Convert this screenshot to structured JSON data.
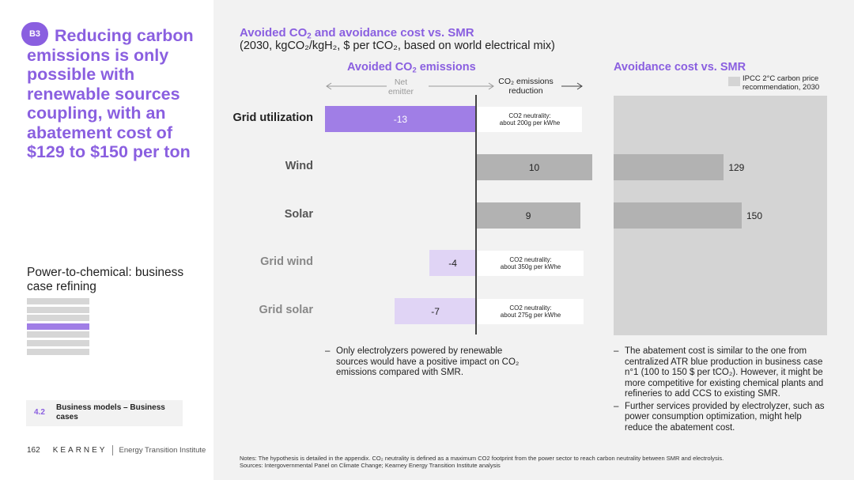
{
  "sidebar": {
    "badge": "B3",
    "headline": "Reducing carbon emissions is only possible with renewable sources coupling, with an abatement cost of $129 to $150 per ton",
    "section_title": "Power-to-chemical: business case refining",
    "chip_number": "4.2",
    "chip_text": "Business models – Business cases",
    "page_number": "162",
    "logo": "KEARNEY",
    "institute": "Energy Transition Institute"
  },
  "header": {
    "title_pre": "Avoided CO",
    "title_sub": "2",
    "title_post": " and avoidance cost vs. SMR",
    "subtitle": "(2030, kgCO₂/kgH₂, $ per tCO₂, based on world electrical mix)"
  },
  "avoided_chart": {
    "heading_pre": "Avoided CO",
    "heading_sub": "2",
    "heading_post": " emissions",
    "axis_left_label": "Net emitter",
    "axis_right_label": "CO₂ emissions reduction",
    "value_labels": [
      "-13",
      "10",
      "9",
      "-4",
      "-7"
    ],
    "notes": [
      {
        "line1": "CO2 neutrality:",
        "line2": "about 200g per kWhe"
      },
      {
        "line1": "CO2 neutrality:",
        "line2": "about 350g per kWhe"
      },
      {
        "line1": "CO2 neutrality:",
        "line2": "about 275g per kWhe"
      }
    ]
  },
  "cost_chart": {
    "heading": "Avoidance cost vs. SMR",
    "legend": "IPCC 2°C carbon price recommendation, 2030",
    "value_labels": [
      "129",
      "150"
    ]
  },
  "chart_data": [
    {
      "type": "bar",
      "title": "Avoided CO2 emissions",
      "categories": [
        "Grid utilization",
        "Wind",
        "Solar",
        "Grid wind",
        "Grid solar"
      ],
      "values": [
        -13,
        10,
        9,
        -4,
        -7
      ],
      "colors": [
        "#a07ee6",
        "#b2b2b2",
        "#b2b2b2",
        "#e0d4f5",
        "#e0d4f5"
      ]
    },
    {
      "type": "bar",
      "title": "Avoidance cost vs. SMR",
      "categories": [
        "Wind",
        "Solar"
      ],
      "values": [
        129,
        150
      ],
      "colors": [
        "#b2b2b2",
        "#b2b2b2"
      ]
    }
  ],
  "bullets_left": [
    "Only electrolyzers powered by renewable sources would have a positive impact on CO₂ emissions compared with SMR."
  ],
  "bullets_right": [
    "The abatement cost is similar to the one from centralized ATR blue production in business case n°1 (100 to 150 $ per tCO₂). However, it might be more competitive for existing chemical plants and refineries to add CCS to existing SMR.",
    "Further services provided by electrolyzer, such as power consumption optimization, might help reduce the abatement cost."
  ],
  "footnotes": {
    "notes": "Notes: The hypothesis is detailed in the appendix. CO₂ neutrality is defined as a maximum CO2 footprint from the power sector to reach carbon neutrality between SMR and electrolysis.",
    "sources": "Sources: Intergovernmental Panel on Climate Change; Kearney Energy Transition Institute analysis"
  },
  "colors": {
    "accent": "#8a5fe0",
    "bar_purple": "#a07ee6",
    "bar_lavender": "#e0d4f5",
    "bar_gray": "#b2b2b2",
    "ipcc_panel": "#d4d4d4"
  }
}
